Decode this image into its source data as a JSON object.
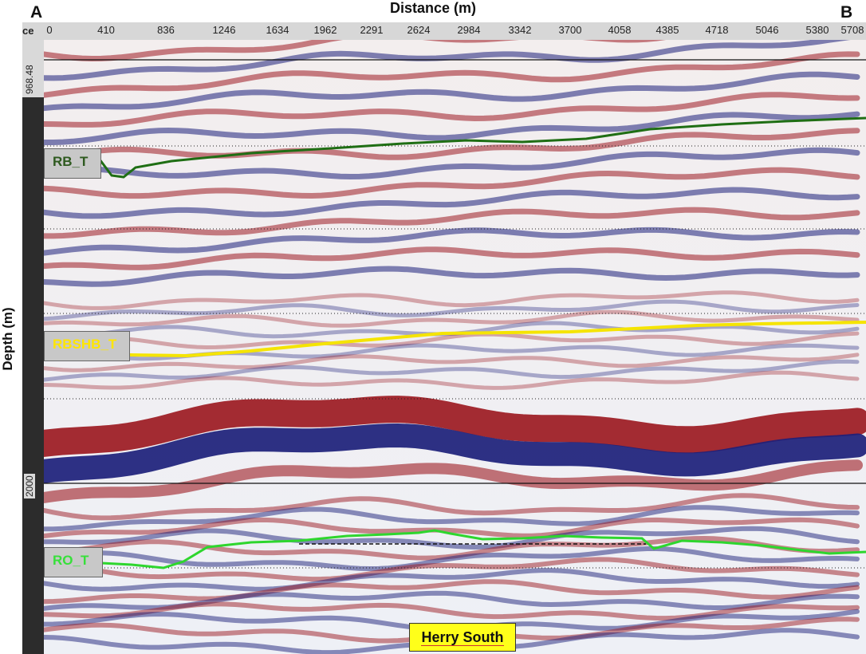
{
  "header": {
    "corner_left": "A",
    "corner_right": "B",
    "x_axis_title": "Distance (m)",
    "y_axis_title": "Depth (m)",
    "ruler_prefix": "ce"
  },
  "x_ticks": [
    "0",
    "410",
    "836",
    "1246",
    "1634",
    "1962",
    "2291",
    "2624",
    "2984",
    "3342",
    "3700",
    "4058",
    "4385",
    "4718",
    "5046",
    "5380",
    "5708"
  ],
  "y_ticks": {
    "top": "968.48",
    "mid": "2000"
  },
  "horizons": {
    "rb": {
      "label": "RB_T",
      "color": "#1f6e14"
    },
    "rbshb": {
      "label": "RBSHB_T",
      "color": "#f5e400"
    },
    "ro": {
      "label": "RO_T",
      "color": "#2ed62e"
    }
  },
  "section": {
    "name": "Herry South",
    "badge_color": "#ffff1a"
  },
  "colors": {
    "positive": "#9c1a22",
    "negative": "#1c1f7a",
    "background": "#f4f4f4"
  }
}
